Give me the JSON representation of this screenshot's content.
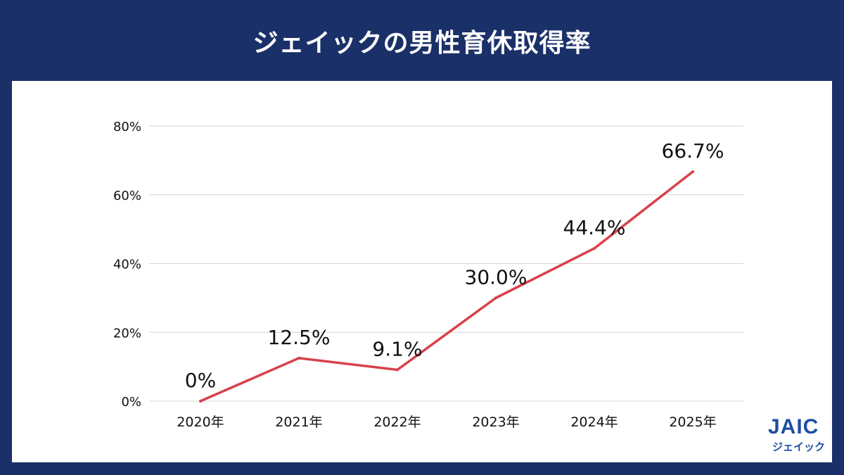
{
  "header": {
    "title": "ジェイックの男性育休取得率"
  },
  "logo": {
    "mark": "JAIC",
    "sub": "ジェイック",
    "color": "#1c4fa3"
  },
  "colors": {
    "background": "#1a3068",
    "panel": "#ffffff",
    "line": "#d8414a",
    "grid": "#d6d6d6",
    "text": "#111111"
  },
  "chart_data": {
    "type": "line",
    "categories": [
      "2020年",
      "2021年",
      "2022年",
      "2023年",
      "2024年",
      "2025年"
    ],
    "values": [
      0,
      12.5,
      9.1,
      30.0,
      44.4,
      66.7
    ],
    "data_labels": [
      "0%",
      "12.5%",
      "9.1%",
      "30.0%",
      "44.4%",
      "66.7%"
    ],
    "yticks": [
      0,
      20,
      40,
      60,
      80
    ],
    "ytick_labels": [
      "0%",
      "20%",
      "40%",
      "60%",
      "80%"
    ],
    "ylim": [
      0,
      80
    ],
    "grid": true,
    "legend": "none"
  }
}
